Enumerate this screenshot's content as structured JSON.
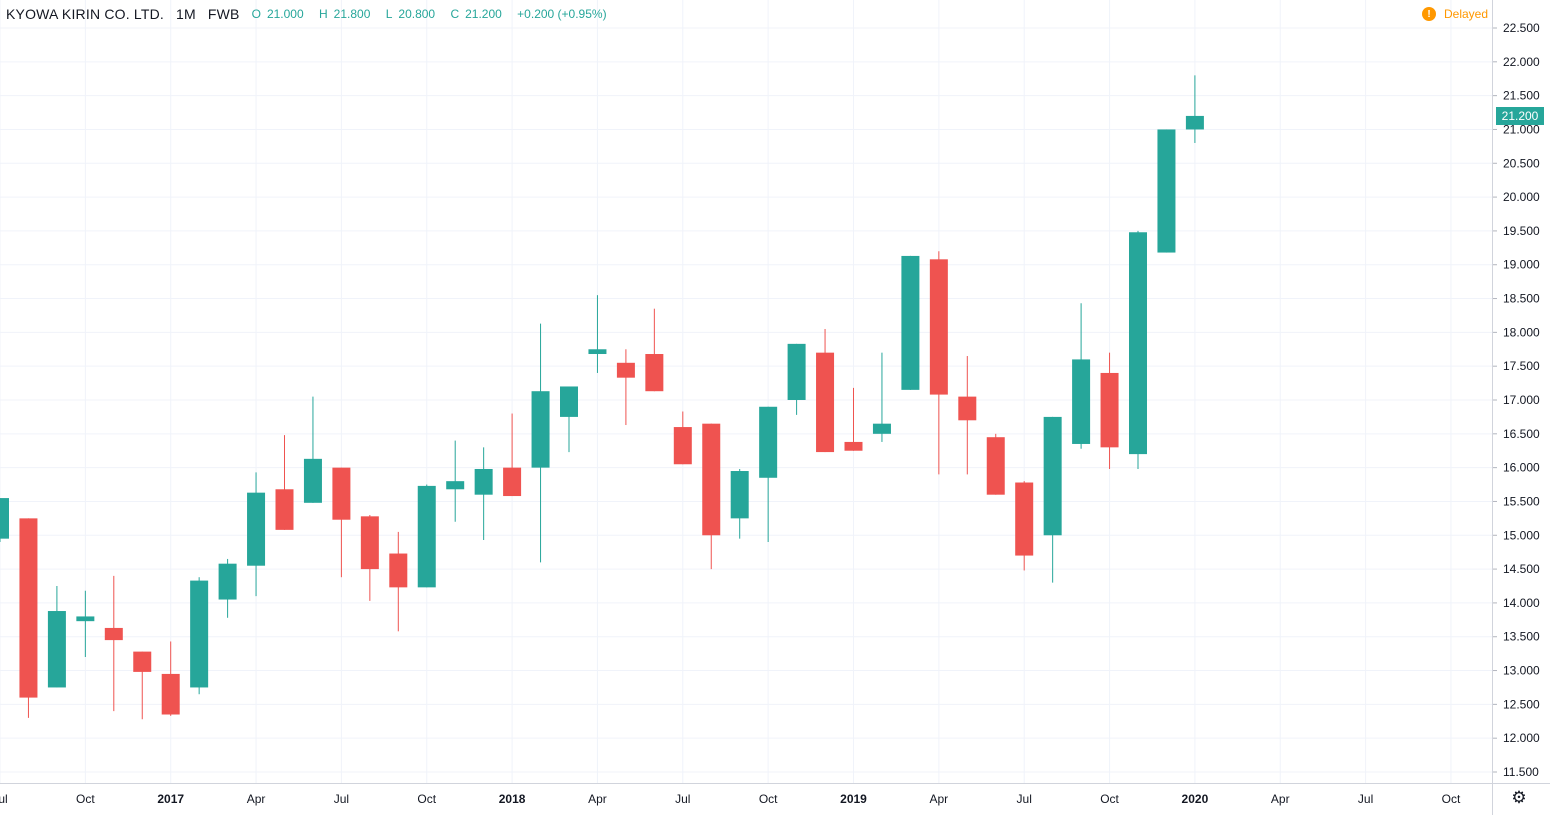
{
  "header": {
    "symbol": "KYOWA KIRIN CO. LTD.",
    "interval": "1M",
    "exchange": "FWB",
    "open_label": "O",
    "open": "21.000",
    "high_label": "H",
    "high": "21.800",
    "low_label": "L",
    "low": "20.800",
    "close_label": "C",
    "close": "21.200",
    "change": "+0.200 (+0.95%)"
  },
  "status": {
    "delayed_label": "Delayed",
    "icon": "exclamation-icon"
  },
  "last_price_label": "21.200",
  "colors": {
    "up": "#26a69a",
    "down": "#ef5350",
    "grid": "#f0f3fa",
    "axis_text": "#131722",
    "delayed": "#ff9800"
  },
  "settings_icon": "gear-icon",
  "chart_data": {
    "type": "candlestick",
    "interval": "1M",
    "grid": true,
    "y_axis_position": "right",
    "ylim": [
      11.3,
      22.8
    ],
    "y_ticks": [
      "11.500",
      "12.000",
      "12.500",
      "13.000",
      "13.500",
      "14.000",
      "14.500",
      "15.000",
      "15.500",
      "16.000",
      "16.500",
      "17.000",
      "17.500",
      "18.000",
      "18.500",
      "19.000",
      "19.500",
      "20.000",
      "20.500",
      "21.000",
      "21.500",
      "22.000",
      "22.500"
    ],
    "x_ticks": [
      {
        "label": "Jul",
        "bold": false,
        "month": "2016-07"
      },
      {
        "label": "Oct",
        "bold": false,
        "month": "2016-10"
      },
      {
        "label": "2017",
        "bold": true,
        "month": "2017-01"
      },
      {
        "label": "Apr",
        "bold": false,
        "month": "2017-04"
      },
      {
        "label": "Jul",
        "bold": false,
        "month": "2017-07"
      },
      {
        "label": "Oct",
        "bold": false,
        "month": "2017-10"
      },
      {
        "label": "2018",
        "bold": true,
        "month": "2018-01"
      },
      {
        "label": "Apr",
        "bold": false,
        "month": "2018-04"
      },
      {
        "label": "Jul",
        "bold": false,
        "month": "2018-07"
      },
      {
        "label": "Oct",
        "bold": false,
        "month": "2018-10"
      },
      {
        "label": "2019",
        "bold": true,
        "month": "2019-01"
      },
      {
        "label": "Apr",
        "bold": false,
        "month": "2019-04"
      },
      {
        "label": "Jul",
        "bold": false,
        "month": "2019-07"
      },
      {
        "label": "Oct",
        "bold": false,
        "month": "2019-10"
      },
      {
        "label": "2020",
        "bold": true,
        "month": "2020-01"
      },
      {
        "label": "Apr",
        "bold": false,
        "month": "2020-04"
      },
      {
        "label": "Jul",
        "bold": false,
        "month": "2020-07"
      },
      {
        "label": "Oct",
        "bold": false,
        "month": "2020-10"
      }
    ],
    "candles": [
      {
        "month": "2016-07",
        "open": 14.95,
        "high": 15.55,
        "low": 14.9,
        "close": 15.55
      },
      {
        "month": "2016-08",
        "open": 15.25,
        "high": 15.25,
        "low": 12.3,
        "close": 12.6
      },
      {
        "month": "2016-09",
        "open": 12.75,
        "high": 14.25,
        "low": 12.75,
        "close": 13.88
      },
      {
        "month": "2016-10",
        "open": 13.73,
        "high": 14.18,
        "low": 13.2,
        "close": 13.8
      },
      {
        "month": "2016-11",
        "open": 13.63,
        "high": 14.4,
        "low": 12.4,
        "close": 13.45
      },
      {
        "month": "2016-12",
        "open": 13.28,
        "high": 13.28,
        "low": 12.28,
        "close": 12.98
      },
      {
        "month": "2017-01",
        "open": 12.95,
        "high": 13.43,
        "low": 12.33,
        "close": 12.35
      },
      {
        "month": "2017-02",
        "open": 12.75,
        "high": 14.38,
        "low": 12.65,
        "close": 14.33
      },
      {
        "month": "2017-03",
        "open": 14.05,
        "high": 14.65,
        "low": 13.78,
        "close": 14.58
      },
      {
        "month": "2017-04",
        "open": 14.55,
        "high": 15.93,
        "low": 14.1,
        "close": 15.63
      },
      {
        "month": "2017-05",
        "open": 15.68,
        "high": 16.48,
        "low": 15.08,
        "close": 15.08
      },
      {
        "month": "2017-06",
        "open": 15.48,
        "high": 17.05,
        "low": 15.48,
        "close": 16.13
      },
      {
        "month": "2017-07",
        "open": 16.0,
        "high": 16.0,
        "low": 14.38,
        "close": 15.23
      },
      {
        "month": "2017-08",
        "open": 15.28,
        "high": 15.3,
        "low": 14.03,
        "close": 14.5
      },
      {
        "month": "2017-09",
        "open": 14.73,
        "high": 15.05,
        "low": 13.58,
        "close": 14.23
      },
      {
        "month": "2017-10",
        "open": 14.23,
        "high": 15.75,
        "low": 14.23,
        "close": 15.73
      },
      {
        "month": "2017-11",
        "open": 15.68,
        "high": 16.4,
        "low": 15.2,
        "close": 15.8
      },
      {
        "month": "2017-12",
        "open": 15.6,
        "high": 16.3,
        "low": 14.93,
        "close": 15.98
      },
      {
        "month": "2018-01",
        "open": 16.0,
        "high": 16.8,
        "low": 15.58,
        "close": 15.58
      },
      {
        "month": "2018-02",
        "open": 16.0,
        "high": 18.13,
        "low": 14.6,
        "close": 17.13
      },
      {
        "month": "2018-03",
        "open": 16.75,
        "high": 17.2,
        "low": 16.23,
        "close": 17.2
      },
      {
        "month": "2018-04",
        "open": 17.68,
        "high": 18.55,
        "low": 17.4,
        "close": 17.75
      },
      {
        "month": "2018-05",
        "open": 17.55,
        "high": 17.75,
        "low": 16.63,
        "close": 17.33
      },
      {
        "month": "2018-06",
        "open": 17.68,
        "high": 18.35,
        "low": 17.13,
        "close": 17.13
      },
      {
        "month": "2018-07",
        "open": 16.6,
        "high": 16.83,
        "low": 16.05,
        "close": 16.05
      },
      {
        "month": "2018-08",
        "open": 16.65,
        "high": 16.65,
        "low": 14.5,
        "close": 15.0
      },
      {
        "month": "2018-09",
        "open": 15.25,
        "high": 15.98,
        "low": 14.95,
        "close": 15.95
      },
      {
        "month": "2018-10",
        "open": 15.85,
        "high": 16.9,
        "low": 14.9,
        "close": 16.9
      },
      {
        "month": "2018-11",
        "open": 17.0,
        "high": 17.83,
        "low": 16.78,
        "close": 17.83
      },
      {
        "month": "2018-12",
        "open": 17.7,
        "high": 18.05,
        "low": 16.23,
        "close": 16.23
      },
      {
        "month": "2019-01",
        "open": 16.38,
        "high": 17.18,
        "low": 16.25,
        "close": 16.25
      },
      {
        "month": "2019-02",
        "open": 16.5,
        "high": 17.7,
        "low": 16.38,
        "close": 16.65
      },
      {
        "month": "2019-03",
        "open": 17.15,
        "high": 19.13,
        "low": 17.15,
        "close": 19.13
      },
      {
        "month": "2019-04",
        "open": 19.08,
        "high": 19.2,
        "low": 15.9,
        "close": 17.08
      },
      {
        "month": "2019-05",
        "open": 17.05,
        "high": 17.65,
        "low": 15.9,
        "close": 16.7
      },
      {
        "month": "2019-06",
        "open": 16.45,
        "high": 16.5,
        "low": 15.6,
        "close": 15.6
      },
      {
        "month": "2019-07",
        "open": 15.78,
        "high": 15.8,
        "low": 14.48,
        "close": 14.7
      },
      {
        "month": "2019-08",
        "open": 15.0,
        "high": 16.75,
        "low": 14.3,
        "close": 16.75
      },
      {
        "month": "2019-09",
        "open": 16.35,
        "high": 18.43,
        "low": 16.28,
        "close": 17.6
      },
      {
        "month": "2019-10",
        "open": 17.4,
        "high": 17.7,
        "low": 15.98,
        "close": 16.3
      },
      {
        "month": "2019-11",
        "open": 16.2,
        "high": 19.5,
        "low": 15.98,
        "close": 19.48
      },
      {
        "month": "2019-12",
        "open": 19.18,
        "high": 21.0,
        "low": 19.18,
        "close": 21.0
      },
      {
        "month": "2020-01",
        "open": 21.0,
        "high": 21.8,
        "low": 20.8,
        "close": 21.2
      }
    ]
  }
}
